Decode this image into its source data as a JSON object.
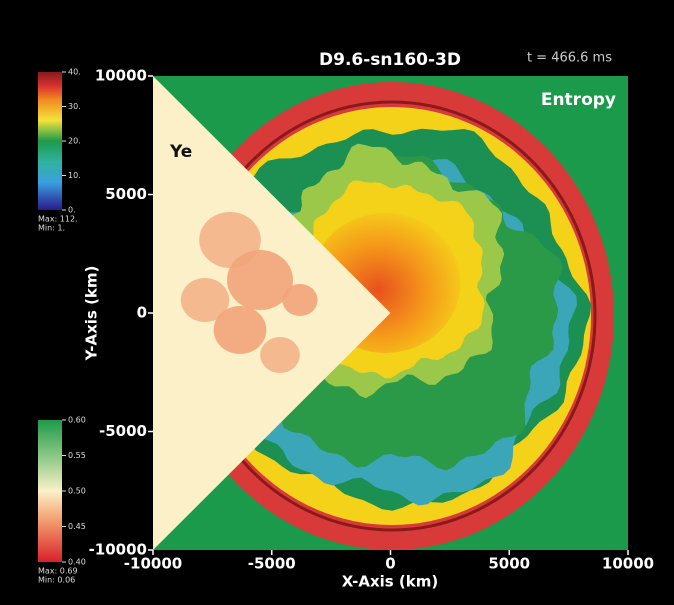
{
  "chart_data": {
    "type": "field",
    "title": "D9.6-sn160-3D",
    "time_label": "t = 466.6 ms",
    "xlabel": "X-Axis (km)",
    "ylabel": "Y-Axis (km)",
    "xlim": [
      -10000,
      10000
    ],
    "ylim": [
      -10000,
      10000
    ],
    "xticks": [
      -10000,
      -5000,
      0,
      5000,
      10000
    ],
    "yticks": [
      -10000,
      -5000,
      0,
      5000,
      10000
    ],
    "fields": [
      {
        "name": "Entropy",
        "colorbar": {
          "lim": [
            0,
            40
          ],
          "ticks": [
            {
              "value": 0,
              "label": "0."
            },
            {
              "value": 10,
              "label": "10."
            },
            {
              "value": 20,
              "label": "20."
            },
            {
              "value": 30,
              "label": "30."
            },
            {
              "value": 40,
              "label": "40."
            }
          ],
          "max_label": "Max: 112.",
          "min_label": "Min: 1."
        }
      },
      {
        "name": "Ye",
        "colorbar": {
          "lim": [
            0.4,
            0.6
          ],
          "ticks": [
            {
              "value": 0.4,
              "label": "0.40"
            },
            {
              "value": 0.45,
              "label": "0.45"
            },
            {
              "value": 0.5,
              "label": "0.50"
            },
            {
              "value": 0.55,
              "label": "0.55"
            },
            {
              "value": 0.6,
              "label": "0.60"
            }
          ],
          "max_label": "Max: 0.69",
          "min_label": "Min: 0.06"
        }
      }
    ]
  }
}
